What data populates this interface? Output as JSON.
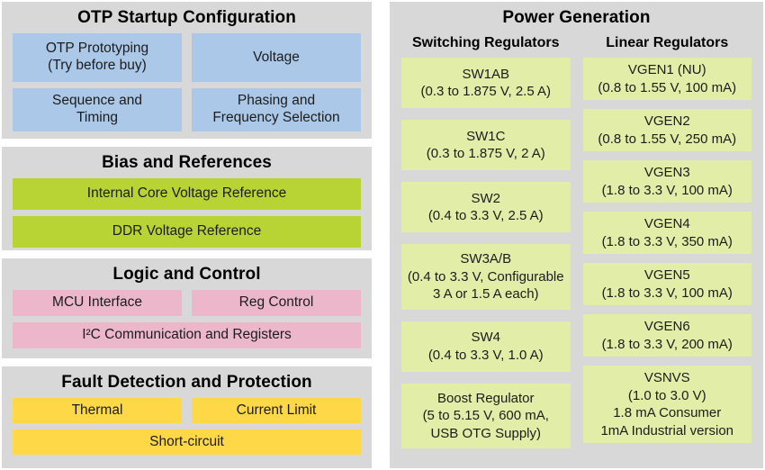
{
  "colors": {
    "page_bg": "#ffffff",
    "panel_bg": "#d8d8d8",
    "text": "#1c1c1c",
    "otp_blue": "#abc8e8",
    "bias_green": "#b8d334",
    "logic_pink": "#ecb7cb",
    "fault_yellow": "#fed847",
    "power_green": "#e2eda8"
  },
  "left_panels": [
    {
      "id": "otp",
      "title": "OTP Startup Configuration",
      "box_color": "#abc8e8",
      "boxes": [
        {
          "label": "OTP Prototyping\n(Try before buy)",
          "span": 1
        },
        {
          "label": "Voltage",
          "span": 1
        },
        {
          "label": "Sequence and\nTiming",
          "span": 1
        },
        {
          "label": "Phasing and\nFrequency Selection",
          "span": 1
        }
      ]
    },
    {
      "id": "bias",
      "title": "Bias and References",
      "box_color": "#b8d334",
      "boxes": [
        {
          "label": "Internal Core Voltage Reference",
          "span": 2
        },
        {
          "label": "DDR Voltage Reference",
          "span": 2
        }
      ]
    },
    {
      "id": "logic",
      "title": "Logic and Control",
      "box_color": "#ecb7cb",
      "boxes": [
        {
          "label": "MCU Interface",
          "span": 1
        },
        {
          "label": "Reg Control",
          "span": 1
        },
        {
          "label": "I²C Communication and Registers",
          "span": 2
        }
      ]
    },
    {
      "id": "fault",
      "title": "Fault Detection and Protection",
      "box_color": "#fed847",
      "boxes": [
        {
          "label": "Thermal",
          "span": 1
        },
        {
          "label": "Current Limit",
          "span": 1
        },
        {
          "label": "Short-circuit",
          "span": 2
        }
      ]
    }
  ],
  "right_panel": {
    "title": "Power Generation",
    "box_color": "#e2eda8",
    "columns": [
      {
        "header": "Switching Regulators",
        "boxes": [
          {
            "name": "SW1AB",
            "detail": "(0.3 to 1.875 V, 2.5 A)"
          },
          {
            "name": "SW1C",
            "detail": "(0.3 to 1.875 V, 2 A)"
          },
          {
            "name": "SW2",
            "detail": "(0.4 to 3.3 V, 2.5 A)"
          },
          {
            "name": "SW3A/B",
            "detail": "(0.4 to 3.3 V, Configurable\n3 A or 1.5 A each)"
          },
          {
            "name": "SW4",
            "detail": "(0.4 to 3.3 V, 1.0 A)"
          },
          {
            "name": "Boost Regulator",
            "detail": "(5 to 5.15 V, 600 mA,\nUSB OTG Supply)"
          }
        ]
      },
      {
        "header": "Linear Regulators",
        "boxes": [
          {
            "name": "VGEN1 (NU)",
            "detail": "(0.8 to 1.55 V, 100 mA)"
          },
          {
            "name": "VGEN2",
            "detail": "(0.8 to 1.55 V, 250 mA)"
          },
          {
            "name": "VGEN3",
            "detail": "(1.8 to 3.3 V, 100 mA)"
          },
          {
            "name": "VGEN4",
            "detail": "(1.8 to 3.3 V, 350 mA)"
          },
          {
            "name": "VGEN5",
            "detail": "(1.8 to 3.3 V, 100 mA)"
          },
          {
            "name": "VGEN6",
            "detail": "(1.8 to 3.3 V, 200 mA)"
          },
          {
            "name": "VSNVS",
            "detail": "(1.0 to 3.0 V)\n1.8 mA Consumer\n1mA Industrial version"
          }
        ]
      }
    ]
  }
}
